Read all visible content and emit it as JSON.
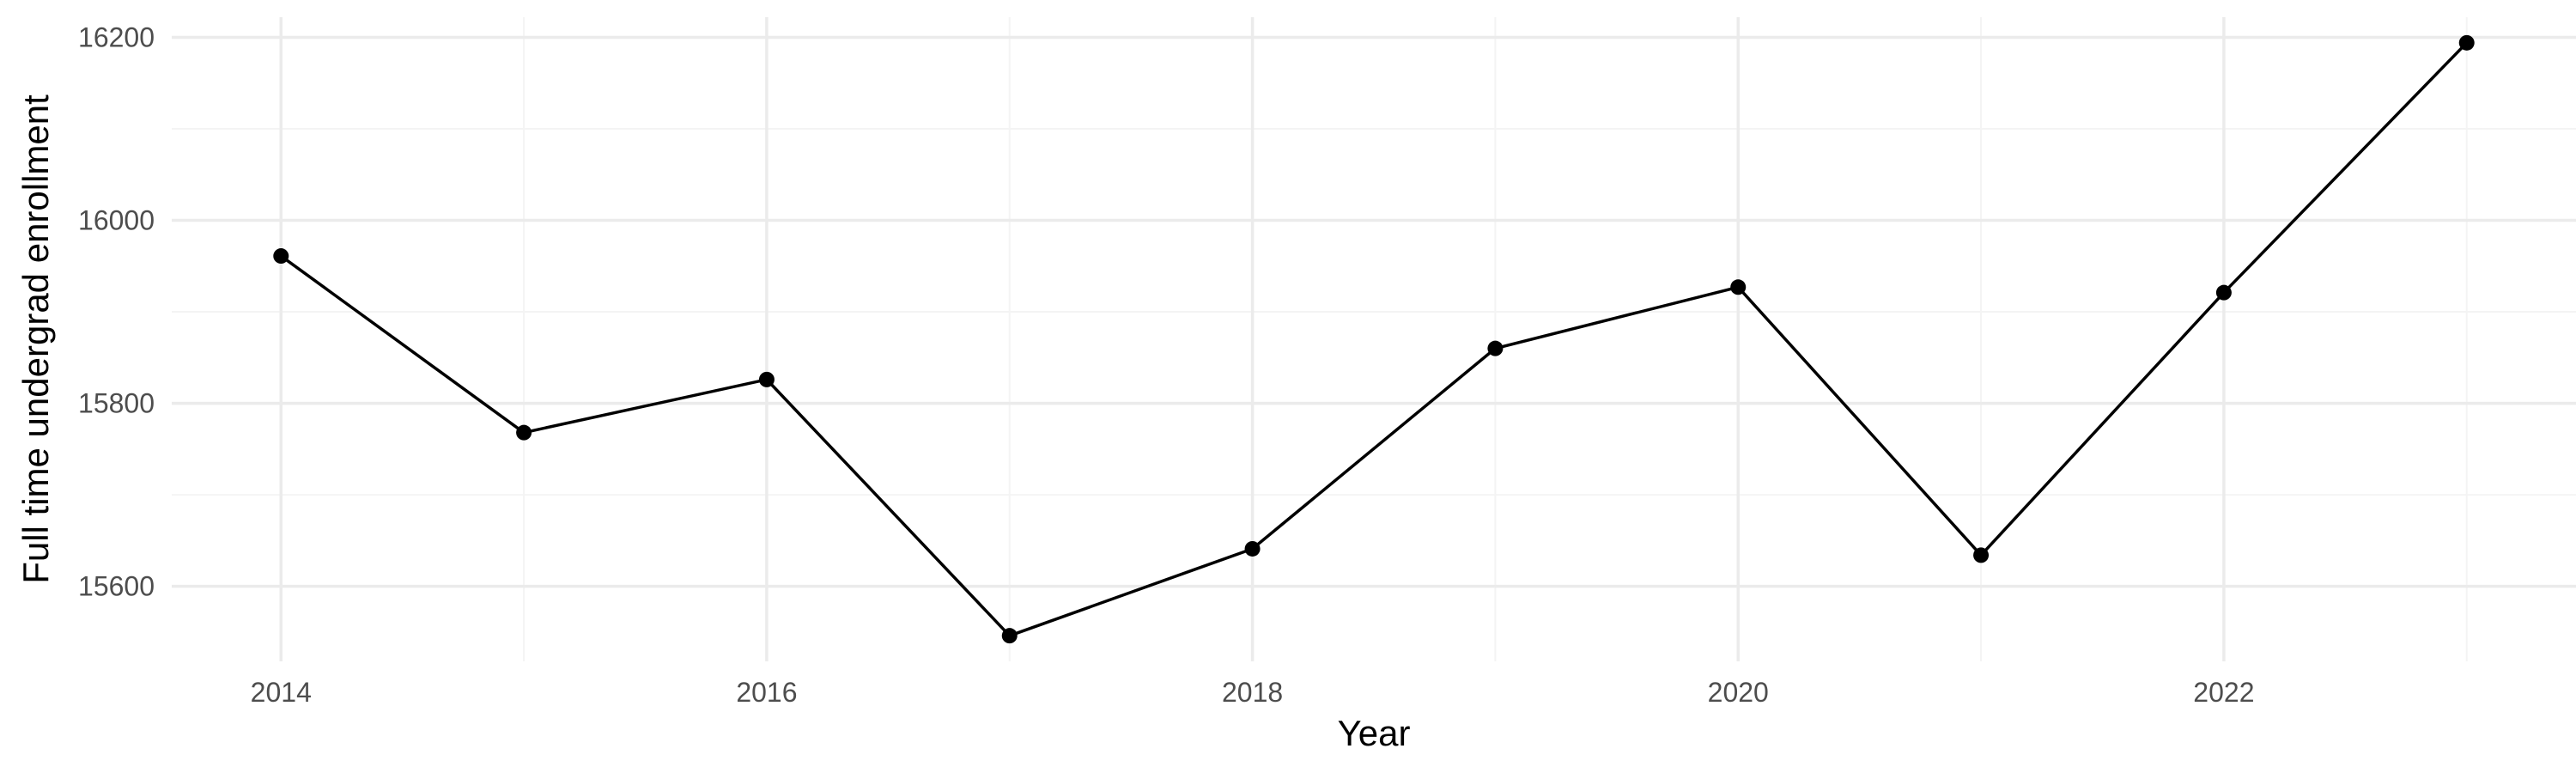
{
  "chart_data": {
    "type": "line",
    "title": "",
    "xlabel": "Year",
    "ylabel": "Full time undergrad enrollment",
    "x": [
      2014,
      2015,
      2016,
      2017,
      2018,
      2019,
      2020,
      2021,
      2022,
      2023
    ],
    "series": [
      {
        "values": [
          15961,
          15768,
          15826,
          15546,
          15641,
          15860,
          15927,
          15634,
          15921,
          16194
        ]
      }
    ],
    "xlim": [
      2013.55,
      2023.45
    ],
    "ylim": [
      15518,
      16222
    ],
    "x_ticks": [
      2014,
      2016,
      2018,
      2020,
      2022
    ],
    "x_tick_labels": [
      "2014",
      "2016",
      "2018",
      "2020",
      "2022"
    ],
    "y_ticks": [
      15600,
      15800,
      16000,
      16200
    ],
    "y_tick_labels": [
      "15600",
      "15800",
      "16000",
      "16200"
    ],
    "grid": true,
    "legend": "none",
    "colors": {
      "line": "#000000",
      "point": "#000000",
      "grid_major": "#ebebeb",
      "grid_minor": "#f4f4f4"
    }
  }
}
